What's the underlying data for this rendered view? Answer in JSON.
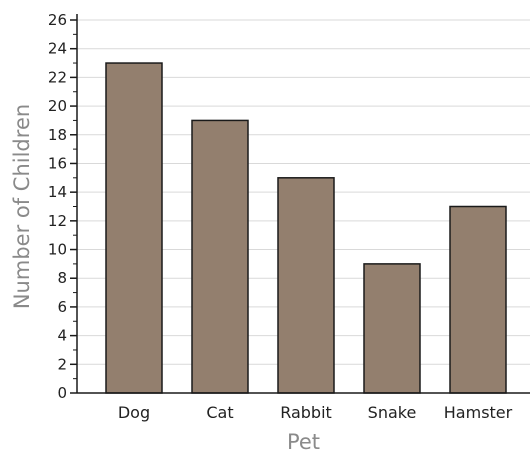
{
  "chart_data": {
    "type": "bar",
    "title": "",
    "xlabel": "Pet",
    "ylabel": "Number of Children",
    "categories": [
      "Dog",
      "Cat",
      "Rabbit",
      "Snake",
      "Hamster"
    ],
    "values": [
      23,
      19,
      15,
      9,
      13
    ],
    "ylim": [
      0,
      26
    ],
    "yticks": [
      "0",
      "2",
      "4",
      "6",
      "8",
      "10",
      "12",
      "14",
      "16",
      "18",
      "20",
      "22",
      "24",
      "26"
    ],
    "grid": true,
    "legend": "none",
    "bar_color": "#937f6e",
    "bar_edge_color": "#1a1a1a",
    "grid_color": "#d9d9d9",
    "axis_color": "#1a1a1a"
  }
}
